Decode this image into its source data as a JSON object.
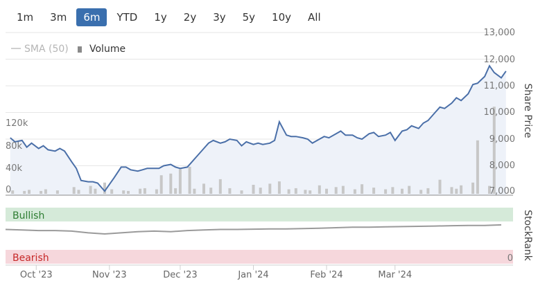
{
  "range_buttons": [
    {
      "label": "1m",
      "active": false
    },
    {
      "label": "3m",
      "active": false
    },
    {
      "label": "6m",
      "active": true
    },
    {
      "label": "YTD",
      "active": false
    },
    {
      "label": "1y",
      "active": false
    },
    {
      "label": "2y",
      "active": false
    },
    {
      "label": "3y",
      "active": false
    },
    {
      "label": "5y",
      "active": false
    },
    {
      "label": "10y",
      "active": false
    },
    {
      "label": "All",
      "active": false
    }
  ],
  "legend": {
    "sma_label": "SMA (50)",
    "volume_label": "Volume"
  },
  "colors": {
    "price_line": "#4a6fa8",
    "price_fill": "#eef2f9",
    "volume_bar": "#c7c7c7",
    "bullish_band": "#d5ead9",
    "bearish_band": "#f6d7dc",
    "stockrank_line": "#9a9a9a",
    "bullish_text": "#2e7d32",
    "bearish_text": "#c62828",
    "active_button": "#3a6fae"
  },
  "chart_data": {
    "type": "line",
    "x_labels": [
      "Oct '23",
      "Nov '23",
      "Dec '23",
      "Jan '24",
      "Feb '24",
      "Mar '24"
    ],
    "price_axis": {
      "label": "Share Price",
      "ticks": [
        "7,000",
        "8,000",
        "9,000",
        "10,000",
        "11,000",
        "12,000",
        "13,000"
      ],
      "ylim": [
        7000,
        13000
      ]
    },
    "volume_axis": {
      "ticks": [
        "0",
        "40k",
        "80k",
        "120k"
      ],
      "ylim": [
        0,
        240000
      ]
    },
    "stockrank": {
      "label": "StockRank",
      "bullish_label": "Bullish",
      "bearish_label": "Bearish",
      "zero_label": "0"
    },
    "price": [
      [
        "2023-09-20",
        9050
      ],
      [
        "2023-09-22",
        8900
      ],
      [
        "2023-09-25",
        8950
      ],
      [
        "2023-09-27",
        8700
      ],
      [
        "2023-09-29",
        8850
      ],
      [
        "2023-10-02",
        8650
      ],
      [
        "2023-10-04",
        8750
      ],
      [
        "2023-10-06",
        8600
      ],
      [
        "2023-10-09",
        8550
      ],
      [
        "2023-10-11",
        8650
      ],
      [
        "2023-10-13",
        8550
      ],
      [
        "2023-10-16",
        8150
      ],
      [
        "2023-10-18",
        7900
      ],
      [
        "2023-10-20",
        7450
      ],
      [
        "2023-10-23",
        7400
      ],
      [
        "2023-10-25",
        7400
      ],
      [
        "2023-10-27",
        7350
      ],
      [
        "2023-10-30",
        7050
      ],
      [
        "2023-11-01",
        7300
      ],
      [
        "2023-11-03",
        7550
      ],
      [
        "2023-11-06",
        7950
      ],
      [
        "2023-11-08",
        7950
      ],
      [
        "2023-11-10",
        7850
      ],
      [
        "2023-11-13",
        7800
      ],
      [
        "2023-11-15",
        7850
      ],
      [
        "2023-11-17",
        7900
      ],
      [
        "2023-11-20",
        7900
      ],
      [
        "2023-11-22",
        7900
      ],
      [
        "2023-11-24",
        8000
      ],
      [
        "2023-11-27",
        8050
      ],
      [
        "2023-11-29",
        7950
      ],
      [
        "2023-12-01",
        7900
      ],
      [
        "2023-12-04",
        7950
      ],
      [
        "2023-12-06",
        8150
      ],
      [
        "2023-12-08",
        8350
      ],
      [
        "2023-12-11",
        8650
      ],
      [
        "2023-12-13",
        8850
      ],
      [
        "2023-12-15",
        8950
      ],
      [
        "2023-12-18",
        8850
      ],
      [
        "2023-12-20",
        8900
      ],
      [
        "2023-12-22",
        9000
      ],
      [
        "2023-12-25",
        8950
      ],
      [
        "2023-12-27",
        8750
      ],
      [
        "2023-12-29",
        8900
      ],
      [
        "2024-01-01",
        8800
      ],
      [
        "2024-01-03",
        8850
      ],
      [
        "2024-01-05",
        8800
      ],
      [
        "2024-01-08",
        8850
      ],
      [
        "2024-01-10",
        8950
      ],
      [
        "2024-01-12",
        9650
      ],
      [
        "2024-01-15",
        9150
      ],
      [
        "2024-01-17",
        9100
      ],
      [
        "2024-01-19",
        9100
      ],
      [
        "2024-01-22",
        9050
      ],
      [
        "2024-01-24",
        9000
      ],
      [
        "2024-01-26",
        8850
      ],
      [
        "2024-01-29",
        9000
      ],
      [
        "2024-01-31",
        9100
      ],
      [
        "2024-02-02",
        9050
      ],
      [
        "2024-02-05",
        9200
      ],
      [
        "2024-02-07",
        9300
      ],
      [
        "2024-02-09",
        9150
      ],
      [
        "2024-02-12",
        9150
      ],
      [
        "2024-02-14",
        9050
      ],
      [
        "2024-02-16",
        9000
      ],
      [
        "2024-02-19",
        9200
      ],
      [
        "2024-02-21",
        9250
      ],
      [
        "2024-02-23",
        9100
      ],
      [
        "2024-02-26",
        9150
      ],
      [
        "2024-02-28",
        9250
      ],
      [
        "2024-03-01",
        8950
      ],
      [
        "2024-03-04",
        9300
      ],
      [
        "2024-03-06",
        9350
      ],
      [
        "2024-03-08",
        9500
      ],
      [
        "2024-03-11",
        9400
      ],
      [
        "2024-03-13",
        9600
      ],
      [
        "2024-03-15",
        9700
      ],
      [
        "2024-03-18",
        10000
      ],
      [
        "2024-03-20",
        10200
      ],
      [
        "2024-03-22",
        10150
      ],
      [
        "2024-03-25",
        10350
      ],
      [
        "2024-03-27",
        10550
      ],
      [
        "2024-03-29",
        10450
      ],
      [
        "2024-04-01",
        10700
      ],
      [
        "2024-04-03",
        11050
      ],
      [
        "2024-04-05",
        11100
      ],
      [
        "2024-04-08",
        11350
      ],
      [
        "2024-04-10",
        11750
      ],
      [
        "2024-04-12",
        11500
      ],
      [
        "2024-04-15",
        11300
      ],
      [
        "2024-04-17",
        11550
      ]
    ],
    "volume": [
      [
        "2023-09-21",
        6000
      ],
      [
        "2023-09-26",
        5000
      ],
      [
        "2023-09-28",
        7000
      ],
      [
        "2023-10-03",
        5000
      ],
      [
        "2023-10-05",
        8000
      ],
      [
        "2023-10-10",
        6000
      ],
      [
        "2023-10-17",
        12000
      ],
      [
        "2023-10-19",
        7000
      ],
      [
        "2023-10-24",
        14000
      ],
      [
        "2023-10-26",
        9000
      ],
      [
        "2023-10-30",
        20000
      ],
      [
        "2023-11-02",
        8000
      ],
      [
        "2023-11-07",
        6000
      ],
      [
        "2023-11-09",
        5000
      ],
      [
        "2023-11-14",
        9000
      ],
      [
        "2023-11-16",
        10000
      ],
      [
        "2023-11-21",
        8000
      ],
      [
        "2023-11-23",
        33000
      ],
      [
        "2023-11-27",
        36000
      ],
      [
        "2023-11-29",
        10000
      ],
      [
        "2023-12-01",
        44000
      ],
      [
        "2023-12-05",
        48000
      ],
      [
        "2023-12-07",
        9000
      ],
      [
        "2023-12-11",
        18000
      ],
      [
        "2023-12-14",
        11000
      ],
      [
        "2023-12-18",
        26000
      ],
      [
        "2023-12-22",
        10000
      ],
      [
        "2023-12-27",
        6000
      ],
      [
        "2024-01-01",
        16000
      ],
      [
        "2024-01-04",
        11000
      ],
      [
        "2024-01-08",
        18000
      ],
      [
        "2024-01-12",
        22000
      ],
      [
        "2024-01-16",
        8000
      ],
      [
        "2024-01-19",
        10000
      ],
      [
        "2024-01-23",
        7000
      ],
      [
        "2024-01-25",
        6000
      ],
      [
        "2024-01-29",
        15000
      ],
      [
        "2024-02-01",
        9000
      ],
      [
        "2024-02-05",
        12000
      ],
      [
        "2024-02-08",
        14000
      ],
      [
        "2024-02-13",
        8000
      ],
      [
        "2024-02-16",
        17000
      ],
      [
        "2024-02-21",
        11000
      ],
      [
        "2024-02-26",
        8000
      ],
      [
        "2024-02-29",
        12000
      ],
      [
        "2024-03-04",
        9000
      ],
      [
        "2024-03-07",
        14000
      ],
      [
        "2024-03-12",
        7000
      ],
      [
        "2024-03-15",
        10000
      ],
      [
        "2024-03-20",
        25000
      ],
      [
        "2024-03-25",
        12000
      ],
      [
        "2024-03-27",
        9000
      ],
      [
        "2024-03-29",
        15000
      ],
      [
        "2024-04-03",
        20000
      ],
      [
        "2024-04-05",
        95000
      ],
      [
        "2024-04-10",
        14000
      ],
      [
        "2024-04-12",
        155000
      ]
    ],
    "stockrank_series": [
      [
        "2023-09-18",
        72
      ],
      [
        "2023-09-25",
        70
      ],
      [
        "2023-10-02",
        68
      ],
      [
        "2023-10-09",
        68
      ],
      [
        "2023-10-16",
        66
      ],
      [
        "2023-10-23",
        60
      ],
      [
        "2023-10-30",
        56
      ],
      [
        "2023-11-06",
        60
      ],
      [
        "2023-11-13",
        64
      ],
      [
        "2023-11-20",
        66
      ],
      [
        "2023-11-27",
        64
      ],
      [
        "2023-12-04",
        68
      ],
      [
        "2023-12-11",
        70
      ],
      [
        "2023-12-18",
        72
      ],
      [
        "2023-12-25",
        72
      ],
      [
        "2024-01-01",
        73
      ],
      [
        "2024-01-08",
        74
      ],
      [
        "2024-01-15",
        74
      ],
      [
        "2024-01-22",
        75
      ],
      [
        "2024-01-29",
        76
      ],
      [
        "2024-02-05",
        78
      ],
      [
        "2024-02-12",
        80
      ],
      [
        "2024-02-19",
        80
      ],
      [
        "2024-02-26",
        81
      ],
      [
        "2024-03-04",
        82
      ],
      [
        "2024-03-11",
        83
      ],
      [
        "2024-03-18",
        84
      ],
      [
        "2024-03-25",
        85
      ],
      [
        "2024-04-01",
        86
      ],
      [
        "2024-04-08",
        86
      ],
      [
        "2024-04-15",
        88
      ]
    ]
  }
}
